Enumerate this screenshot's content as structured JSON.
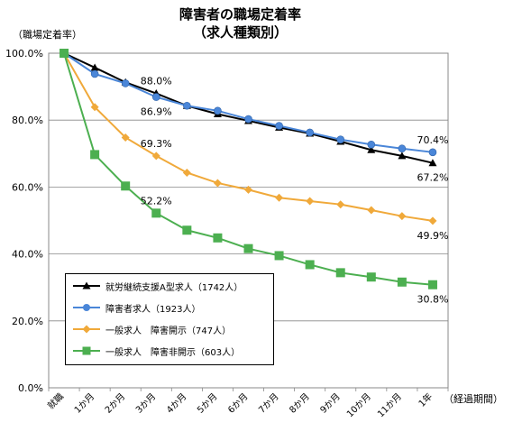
{
  "chart_data": {
    "type": "line",
    "title": "障害者の職場定着率",
    "subtitle": "（求人種類別）",
    "ylabel": "（職場定着率）",
    "xlabel": "（経過期間）",
    "ylim": [
      0,
      100
    ],
    "yticks": [
      "0.0%",
      "20.0%",
      "40.0%",
      "60.0%",
      "80.0%",
      "100.0%"
    ],
    "categories": [
      "就職",
      "1か月",
      "2か月",
      "3か月",
      "4か月",
      "5か月",
      "6か月",
      "7か月",
      "8か月",
      "9か月",
      "10か月",
      "11か月",
      "1年"
    ],
    "grid": true,
    "legend_position": "bottom-left",
    "series": [
      {
        "name": "就労継続支援A型求人（1742人）",
        "color": "#000000",
        "marker": "triangle",
        "values": [
          100,
          95.7,
          91.3,
          88.0,
          84.3,
          81.8,
          79.8,
          77.8,
          76.0,
          73.6,
          71.1,
          69.3,
          67.2
        ]
      },
      {
        "name": "障害者求人（1923人）",
        "color": "#4a86d8",
        "marker": "circle",
        "values": [
          100,
          93.8,
          91.0,
          86.9,
          84.3,
          82.8,
          80.3,
          78.3,
          76.3,
          74.2,
          72.7,
          71.5,
          70.4
        ]
      },
      {
        "name": "一般求人　障害開示（747人）",
        "color": "#f0a93a",
        "marker": "diamond",
        "values": [
          100,
          83.9,
          74.8,
          69.3,
          64.3,
          61.2,
          59.2,
          56.8,
          55.8,
          54.8,
          53.1,
          51.3,
          49.9
        ]
      },
      {
        "name": "一般求人　障害非開示（603人）",
        "color": "#4caf50",
        "marker": "square",
        "values": [
          100,
          69.7,
          60.3,
          52.2,
          47.1,
          44.8,
          41.6,
          39.5,
          36.8,
          34.4,
          33.1,
          31.6,
          30.8
        ]
      }
    ],
    "annotations": [
      {
        "text": "88.0%",
        "series": 0,
        "index": 3,
        "pos": "above"
      },
      {
        "text": "86.9%",
        "series": 1,
        "index": 3,
        "pos": "below"
      },
      {
        "text": "69.3%",
        "series": 2,
        "index": 3,
        "pos": "above"
      },
      {
        "text": "52.2%",
        "series": 3,
        "index": 3,
        "pos": "above"
      },
      {
        "text": "70.4%",
        "series": 1,
        "index": 12,
        "pos": "above"
      },
      {
        "text": "67.2%",
        "series": 0,
        "index": 12,
        "pos": "below"
      },
      {
        "text": "49.9%",
        "series": 2,
        "index": 12,
        "pos": "below"
      },
      {
        "text": "30.8%",
        "series": 3,
        "index": 12,
        "pos": "below"
      }
    ]
  }
}
